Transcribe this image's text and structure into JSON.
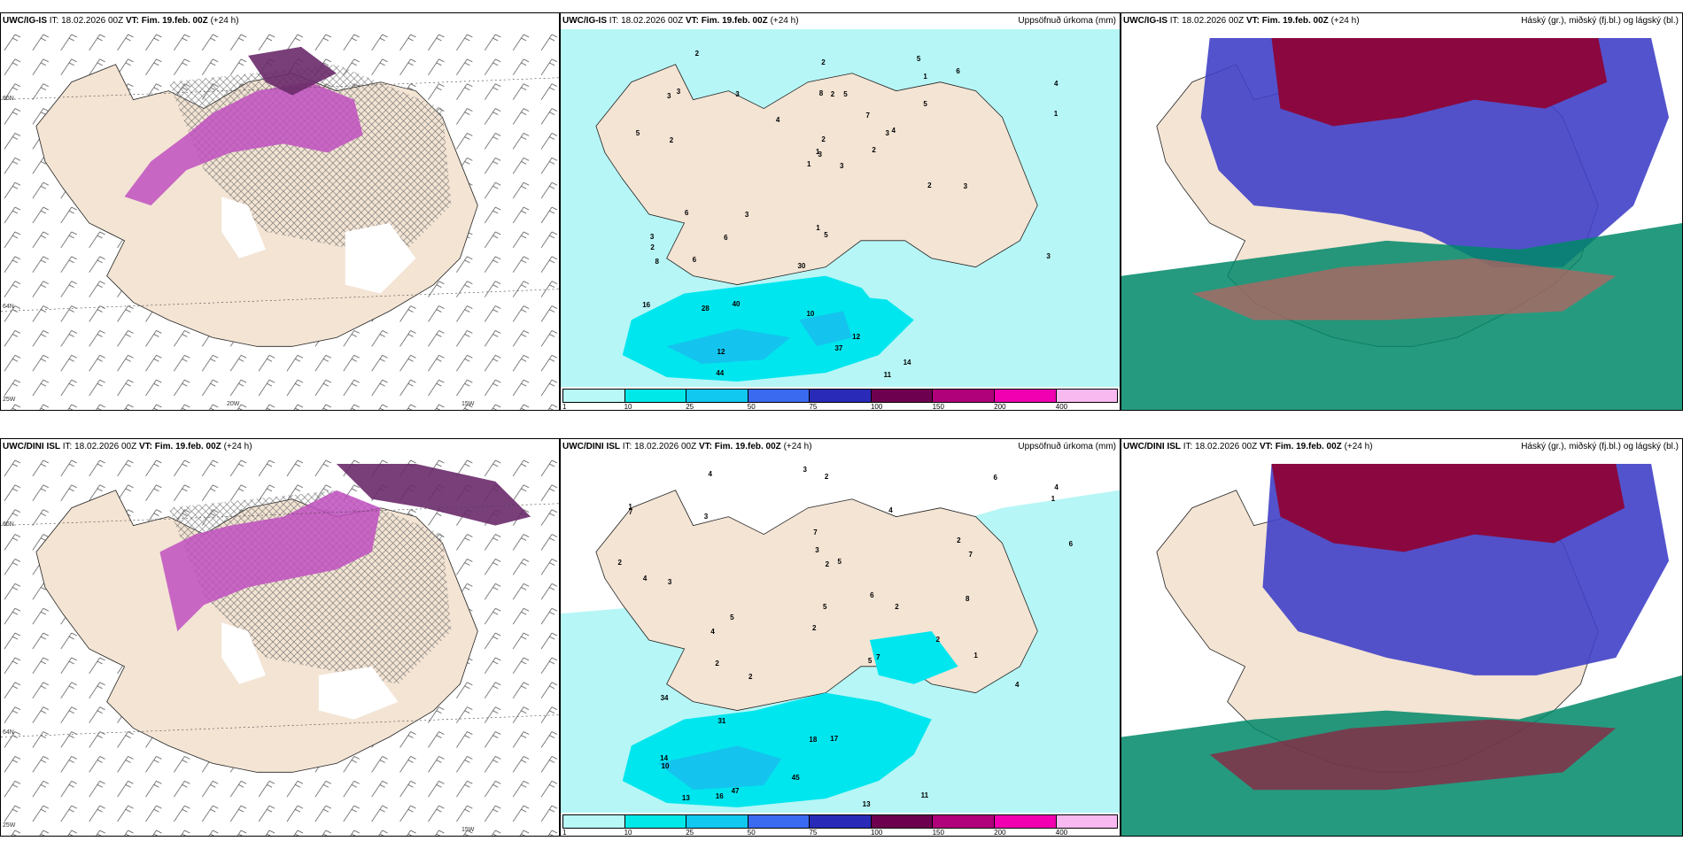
{
  "rows": [
    {
      "model_label": "UWC/IG-IS",
      "init_label": "IT: 18.02.2026 00Z",
      "valid_label": "VT: Fim. 19.feb. 00Z",
      "lead": "(+24 h)",
      "precip_numbers": [
        "3",
        "3",
        "3",
        "3",
        "3",
        "3",
        "5",
        "5",
        "1",
        "2",
        "2",
        "3",
        "2",
        "4",
        "1",
        "5",
        "6",
        "8",
        "7",
        "6",
        "4",
        "2",
        "6",
        "2",
        "4",
        "3",
        "3",
        "2",
        "5",
        "2",
        "1",
        "1",
        "1",
        "2",
        "3",
        "6",
        "12",
        "11",
        "14",
        "12",
        "30",
        "40",
        "28",
        "37",
        "44",
        "16",
        "10",
        "8",
        "5"
      ]
    },
    {
      "model_label": "UWC/DINI ISL",
      "init_label": "IT: 18.02.2026 00Z",
      "valid_label": "VT: Fim. 19.feb. 00Z",
      "lead": "(+24 h)",
      "precip_numbers": [
        "2",
        "2",
        "2",
        "4",
        "1",
        "4",
        "3",
        "4",
        "7",
        "6",
        "5",
        "8",
        "3",
        "7",
        "3",
        "4",
        "7",
        "4",
        "6",
        "2",
        "2",
        "1",
        "1",
        "3",
        "2",
        "2",
        "2",
        "4",
        "2",
        "5",
        "14",
        "13",
        "18",
        "13",
        "16",
        "10",
        "7",
        "34",
        "47",
        "31",
        "45",
        "17",
        "11",
        "6",
        "5",
        "5"
      ]
    }
  ],
  "precip_title": "Uppsöfnuð úrkoma (mm)",
  "cloud_title": "Háský (gr.), miðský (fj.bl.) og lágský (bl.)",
  "colorbar": {
    "labels": [
      "1",
      "10",
      "25",
      "50",
      "75",
      "100",
      "150",
      "200",
      "400"
    ],
    "colors": [
      "#b8f8f6",
      "#00e8e8",
      "#10c8f0",
      "#3a6af0",
      "#2a2ab8",
      "#6e0050",
      "#b0007a",
      "#f000b0",
      "#f8b8f0"
    ]
  },
  "axis_labels": {
    "lat_66": "66N",
    "lat_64": "64N",
    "lon_25": "25W",
    "lon_20": "20W",
    "lon_15": "15W"
  },
  "colors": {
    "land": "#f3e4d4",
    "precip_light": "#b6f6f6",
    "precip_mid": "#00e6ee",
    "precip_heavy": "#14c4ee",
    "snow_magenta": "#c050c0",
    "cloud_high": "#900030",
    "cloud_mid": "#4040c8",
    "cloud_low": "#008868"
  }
}
